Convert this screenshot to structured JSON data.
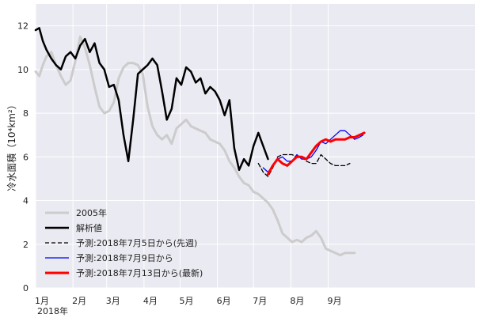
{
  "chart_data": {
    "type": "line",
    "ylabel": "冷水面積（10⁴km²）",
    "ylim": [
      0,
      13
    ],
    "yticks": [
      0,
      2,
      4,
      6,
      8,
      10,
      12
    ],
    "xlim": [
      1,
      366
    ],
    "x_tick_days": [
      1,
      32,
      60,
      91,
      121,
      152,
      182,
      213,
      244
    ],
    "x_tick_labels": [
      "1月",
      "2月",
      "3月",
      "4月",
      "5月",
      "6月",
      "7月",
      "8月",
      "9月"
    ],
    "x_sub_label": "2018年",
    "grid": true,
    "legend_position": "lower-left",
    "series": [
      {
        "name": "2005年",
        "color": "#cccccc",
        "x": [
          1,
          4,
          7,
          10,
          14,
          18,
          22,
          26,
          30,
          34,
          38,
          42,
          46,
          50,
          54,
          58,
          62,
          66,
          70,
          74,
          78,
          82,
          86,
          90,
          94,
          98,
          102,
          106,
          110,
          114,
          118,
          122,
          126,
          130,
          134,
          138,
          142,
          146,
          150,
          154,
          158,
          162,
          166,
          170,
          174,
          178,
          182,
          186,
          190,
          194,
          198,
          202,
          206,
          210,
          214,
          218,
          222,
          226,
          230,
          234,
          238,
          242,
          246,
          250,
          254,
          258,
          262,
          266
        ],
        "y": [
          9.9,
          9.7,
          10.2,
          10.6,
          10.8,
          10.2,
          9.7,
          9.3,
          9.5,
          10.4,
          11.5,
          11.0,
          10.2,
          9.2,
          8.3,
          8.0,
          8.1,
          8.5,
          9.6,
          10.1,
          10.3,
          10.3,
          10.2,
          9.8,
          8.3,
          7.4,
          7.0,
          6.8,
          7.0,
          6.6,
          7.3,
          7.5,
          7.7,
          7.4,
          7.3,
          7.2,
          7.1,
          6.8,
          6.7,
          6.6,
          6.3,
          5.8,
          5.5,
          5.1,
          4.8,
          4.7,
          4.4,
          4.3,
          4.1,
          3.9,
          3.6,
          3.1,
          2.5,
          2.3,
          2.1,
          2.2,
          2.1,
          2.3,
          2.4,
          2.6,
          2.3,
          1.8,
          1.7,
          1.6,
          1.5,
          1.6,
          1.6,
          1.6
        ]
      },
      {
        "name": "解析値",
        "color": "#000000",
        "x": [
          1,
          4,
          7,
          10,
          14,
          18,
          22,
          26,
          30,
          34,
          38,
          42,
          46,
          50,
          54,
          58,
          62,
          66,
          70,
          74,
          78,
          82,
          86,
          90,
          94,
          98,
          102,
          106,
          110,
          114,
          118,
          122,
          126,
          130,
          134,
          138,
          142,
          146,
          150,
          154,
          158,
          162,
          166,
          170,
          174,
          178,
          182,
          186,
          190,
          194
        ],
        "y": [
          11.8,
          11.9,
          11.3,
          10.9,
          10.5,
          10.2,
          10.0,
          10.6,
          10.8,
          10.5,
          11.1,
          11.4,
          10.8,
          11.2,
          10.3,
          10.0,
          9.2,
          9.3,
          8.6,
          7.0,
          5.8,
          7.7,
          9.8,
          10.0,
          10.2,
          10.5,
          10.2,
          9.0,
          7.7,
          8.2,
          9.6,
          9.3,
          10.1,
          9.9,
          9.4,
          9.6,
          8.9,
          9.2,
          9.0,
          8.6,
          7.9,
          8.6,
          6.4,
          5.4,
          5.9,
          5.6,
          6.5,
          7.1,
          6.5,
          5.9
        ]
      },
      {
        "name": "予測:2018年7月5日から(先週)",
        "color": "#000000",
        "dash": true,
        "x": [
          186,
          190,
          194,
          198,
          202,
          206,
          210,
          214,
          218,
          222,
          226,
          230,
          234,
          238,
          242,
          246,
          250,
          254,
          258,
          262
        ],
        "y": [
          5.7,
          5.3,
          5.1,
          5.5,
          6.0,
          6.1,
          6.1,
          6.1,
          6.0,
          6.0,
          5.8,
          5.7,
          5.7,
          6.1,
          5.9,
          5.7,
          5.6,
          5.6,
          5.6,
          5.7
        ]
      },
      {
        "name": "予測:2018年7月9日から",
        "color": "#0000ff",
        "x": [
          190,
          194,
          198,
          202,
          206,
          210,
          214,
          218,
          222,
          226,
          230,
          234,
          238,
          242,
          246,
          250,
          254,
          258,
          262,
          266,
          270,
          273
        ],
        "y": [
          5.5,
          5.3,
          5.6,
          5.9,
          6.0,
          5.8,
          5.8,
          6.1,
          5.9,
          5.9,
          6.0,
          6.3,
          6.7,
          6.6,
          6.8,
          7.0,
          7.2,
          7.2,
          7.0,
          6.8,
          6.9,
          7.0
        ]
      },
      {
        "name": "予測:2018年7月13日から(最新)",
        "color": "#ff0000",
        "x": [
          194,
          198,
          202,
          206,
          210,
          214,
          218,
          222,
          226,
          230,
          234,
          238,
          242,
          246,
          250,
          254,
          258,
          262,
          266,
          270,
          274
        ],
        "y": [
          5.2,
          5.6,
          5.9,
          5.7,
          5.6,
          5.8,
          6.0,
          6.0,
          5.9,
          6.2,
          6.5,
          6.7,
          6.8,
          6.7,
          6.8,
          6.8,
          6.8,
          6.9,
          6.9,
          7.0,
          7.1
        ]
      }
    ]
  }
}
